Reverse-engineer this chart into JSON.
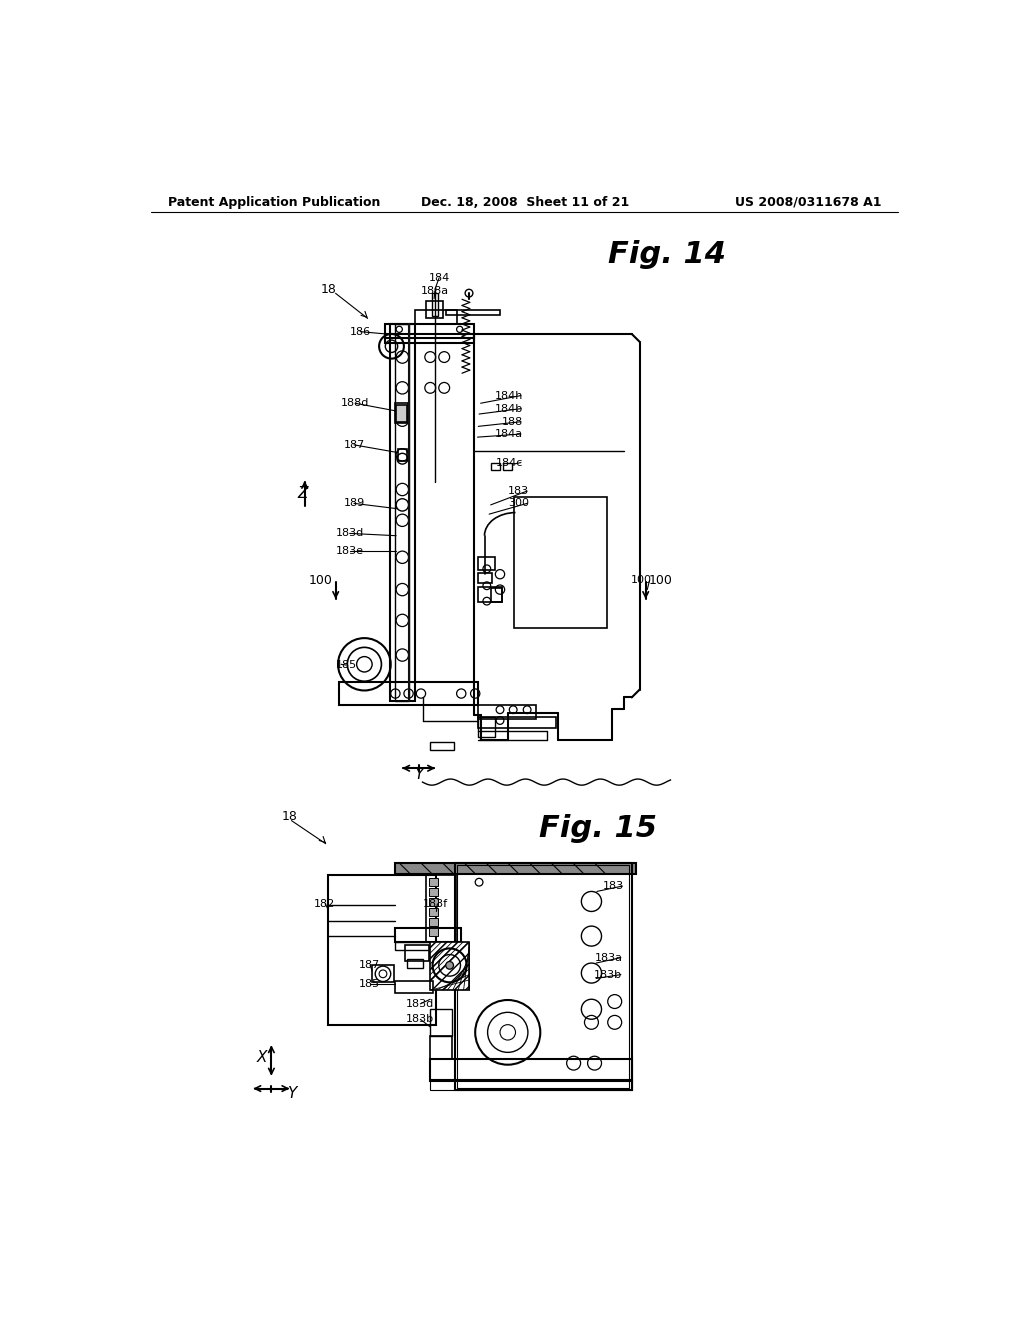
{
  "bg": "#ffffff",
  "header_left": "Patent Application Publication",
  "header_center": "Dec. 18, 2008  Sheet 11 of 21",
  "header_right": "US 2008/0311678 A1",
  "fig14_title": "Fig. 14",
  "fig15_title": "Fig. 15"
}
